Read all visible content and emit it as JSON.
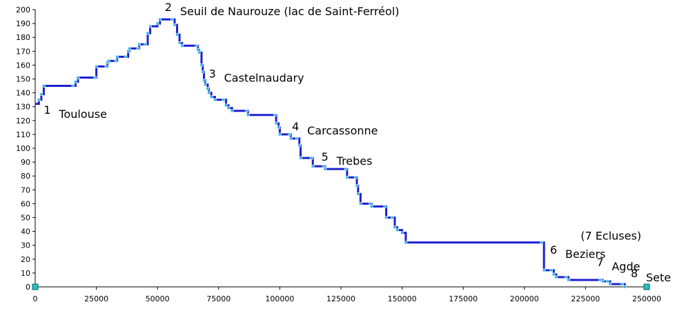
{
  "chart_data": {
    "type": "line",
    "title": "",
    "xlabel": "",
    "ylabel": "",
    "xlim": [
      0,
      250000
    ],
    "ylim": [
      0,
      200
    ],
    "grid": false,
    "x_ticks": [
      "0",
      "25000",
      "50000",
      "75000",
      "100000",
      "125000",
      "150000",
      "175000",
      "200000",
      "225000",
      "250000"
    ],
    "y_ticks": [
      "0",
      "10",
      "20",
      "30",
      "40",
      "50",
      "60",
      "70",
      "80",
      "90",
      "100",
      "110",
      "120",
      "130",
      "140",
      "150",
      "160",
      "170",
      "180",
      "190",
      "200"
    ],
    "x_tick_values": [
      0,
      25000,
      50000,
      75000,
      100000,
      125000,
      150000,
      175000,
      200000,
      225000,
      250000
    ],
    "y_tick_values": [
      0,
      10,
      20,
      30,
      40,
      50,
      60,
      70,
      80,
      90,
      100,
      110,
      120,
      130,
      140,
      150,
      160,
      170,
      180,
      190,
      200
    ],
    "line_color": "#1f1fcf",
    "marker_color": "#39b5e6",
    "series": [
      {
        "name": "",
        "step_points": [
          [
            0,
            132
          ],
          [
            1500,
            135
          ],
          [
            2500,
            139
          ],
          [
            3500,
            145
          ],
          [
            15500,
            145
          ],
          [
            16500,
            148
          ],
          [
            17500,
            151
          ],
          [
            24500,
            151
          ],
          [
            25000,
            159
          ],
          [
            29000,
            159
          ],
          [
            29500,
            162
          ],
          [
            30000,
            163
          ],
          [
            33000,
            163
          ],
          [
            33500,
            166
          ],
          [
            37000,
            166
          ],
          [
            38000,
            170
          ],
          [
            38500,
            172
          ],
          [
            42000,
            172
          ],
          [
            42500,
            175
          ],
          [
            45000,
            175
          ],
          [
            46000,
            183
          ],
          [
            47000,
            188
          ],
          [
            50000,
            190
          ],
          [
            51000,
            193
          ],
          [
            56000,
            193
          ],
          [
            57000,
            189
          ],
          [
            58000,
            182
          ],
          [
            59000,
            176
          ],
          [
            60000,
            174
          ],
          [
            66000,
            174
          ],
          [
            66500,
            171
          ],
          [
            67000,
            169
          ],
          [
            68000,
            160
          ],
          [
            68500,
            155
          ],
          [
            69000,
            149
          ],
          [
            69500,
            146
          ],
          [
            70500,
            143
          ],
          [
            71000,
            140
          ],
          [
            72000,
            137
          ],
          [
            73500,
            135
          ],
          [
            77000,
            135
          ],
          [
            78000,
            131
          ],
          [
            79000,
            129
          ],
          [
            80500,
            127
          ],
          [
            86500,
            127
          ],
          [
            87000,
            124
          ],
          [
            98000,
            124
          ],
          [
            98500,
            118
          ],
          [
            99500,
            115
          ],
          [
            100000,
            110
          ],
          [
            104000,
            110
          ],
          [
            104500,
            107
          ],
          [
            107000,
            107
          ],
          [
            108000,
            102
          ],
          [
            108500,
            93
          ],
          [
            113000,
            93
          ],
          [
            113500,
            87
          ],
          [
            118000,
            87
          ],
          [
            118500,
            85
          ],
          [
            127000,
            85
          ],
          [
            127500,
            79
          ],
          [
            131000,
            79
          ],
          [
            131500,
            73
          ],
          [
            132000,
            67
          ],
          [
            133000,
            60
          ],
          [
            137000,
            60
          ],
          [
            137500,
            58
          ],
          [
            143000,
            58
          ],
          [
            143500,
            50
          ],
          [
            146000,
            50
          ],
          [
            147000,
            43
          ],
          [
            148000,
            41
          ],
          [
            150000,
            39
          ],
          [
            151500,
            32
          ],
          [
            207000,
            32
          ],
          [
            208000,
            12
          ],
          [
            211000,
            12
          ],
          [
            212000,
            9
          ],
          [
            213000,
            7
          ],
          [
            217000,
            7
          ],
          [
            218000,
            5
          ],
          [
            231000,
            5
          ],
          [
            232000,
            4
          ],
          [
            234000,
            4
          ],
          [
            235000,
            2
          ],
          [
            240000,
            2
          ],
          [
            241000,
            0
          ]
        ]
      }
    ],
    "annotations": [
      {
        "num": "1",
        "name": "Toulouse",
        "x": 3500,
        "y": 125
      },
      {
        "num": "2",
        "name": "Seuil de Naurouze (lac de Saint-Ferréol)",
        "x": 53000,
        "y": 199
      },
      {
        "num": "3",
        "name": "Castelnaudary",
        "x": 71000,
        "y": 151
      },
      {
        "num": "4",
        "name": "Carcassonne",
        "x": 105000,
        "y": 113
      },
      {
        "num": "5",
        "name": "Trebes",
        "x": 117000,
        "y": 91
      },
      {
        "num": "",
        "name": "(7 Ecluses)",
        "x": 223000,
        "y": 34
      },
      {
        "num": "6",
        "name": "Beziers",
        "x": 210500,
        "y": 24
      },
      {
        "num": "7",
        "name": "Agde",
        "x": 229500,
        "y": 15
      },
      {
        "num": "8",
        "name": "Sete",
        "x": 243500,
        "y": 7
      }
    ]
  }
}
